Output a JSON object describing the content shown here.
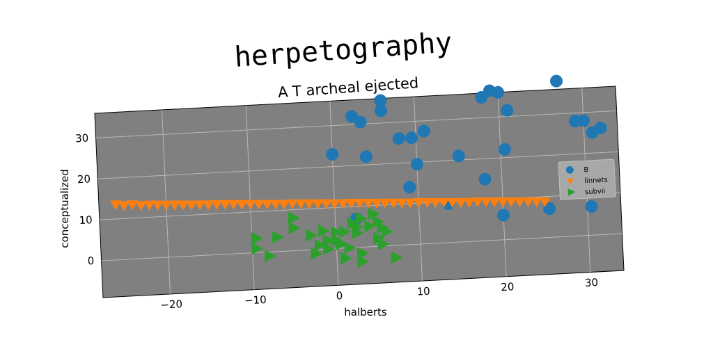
{
  "chart_data": {
    "type": "scatter",
    "title": "herpetography",
    "subtitle": "A T archeal ejected",
    "xlabel": "halberts",
    "ylabel": "conceptualized",
    "xlim": [
      -28,
      34
    ],
    "ylim": [
      -9,
      36
    ],
    "xticks": [
      -20,
      -10,
      0,
      10,
      20,
      30
    ],
    "yticks": [
      0,
      10,
      20,
      30
    ],
    "xtick_labels": [
      "−20",
      "−10",
      "0",
      "10",
      "20",
      "30"
    ],
    "ytick_labels": [
      "0",
      "10",
      "20",
      "30"
    ],
    "grid": true,
    "legend_position": "center-right",
    "background_color": "#808080",
    "series": [
      {
        "name": "B",
        "marker": "circle",
        "color": "#1f77b4",
        "points": [
          [
            2.5,
            32
          ],
          [
            3.5,
            30.5
          ],
          [
            6,
            35.5
          ],
          [
            6,
            33
          ],
          [
            19,
            36.5
          ],
          [
            18,
            35
          ],
          [
            20,
            36
          ],
          [
            21,
            31.5
          ],
          [
            27,
            38
          ],
          [
            29,
            28
          ],
          [
            30,
            28
          ],
          [
            31,
            25
          ],
          [
            32,
            26
          ],
          [
            0,
            23
          ],
          [
            4,
            22
          ],
          [
            8,
            26
          ],
          [
            9.5,
            26
          ],
          [
            11,
            27.5
          ],
          [
            15,
            21
          ],
          [
            20.5,
            22
          ],
          [
            10,
            19.5
          ],
          [
            9,
            14
          ],
          [
            18,
            15
          ],
          [
            13.5,
            9.5
          ],
          [
            25.5,
            7
          ],
          [
            30.5,
            7
          ],
          [
            20,
            6
          ],
          [
            2.5,
            7
          ]
        ]
      },
      {
        "name": "linnets",
        "marker": "triangle-down",
        "color": "#ff7f0e",
        "points": [
          [
            -26,
            13.5
          ],
          [
            -25,
            13.2
          ],
          [
            -24,
            13.3
          ],
          [
            -23,
            13.0
          ],
          [
            -22,
            13.0
          ],
          [
            -21,
            12.9
          ],
          [
            -20,
            12.8
          ],
          [
            -19,
            12.7
          ],
          [
            -18,
            12.6
          ],
          [
            -17,
            12.5
          ],
          [
            -16,
            12.4
          ],
          [
            -15,
            12.3
          ],
          [
            -14,
            12.3
          ],
          [
            -13,
            12.2
          ],
          [
            -12,
            12.1
          ],
          [
            -11,
            12.0
          ],
          [
            -10,
            11.9
          ],
          [
            -9,
            11.8
          ],
          [
            -8,
            11.7
          ],
          [
            -7,
            11.6
          ],
          [
            -6,
            11.5
          ],
          [
            -5,
            11.5
          ],
          [
            -4,
            11.4
          ],
          [
            -3,
            11.3
          ],
          [
            -2,
            11.2
          ],
          [
            -1,
            11.1
          ],
          [
            0,
            11.0
          ],
          [
            1,
            10.9
          ],
          [
            2,
            10.9
          ],
          [
            3,
            10.8
          ],
          [
            4,
            10.7
          ],
          [
            5,
            10.6
          ],
          [
            6,
            10.5
          ],
          [
            7,
            10.4
          ],
          [
            8,
            10.3
          ],
          [
            9,
            10.2
          ],
          [
            10,
            10.2
          ],
          [
            11,
            10.1
          ],
          [
            12,
            10.0
          ],
          [
            13,
            9.9
          ],
          [
            14,
            9.8
          ],
          [
            15,
            9.7
          ],
          [
            16,
            9.6
          ],
          [
            17,
            9.6
          ],
          [
            18,
            9.5
          ],
          [
            19,
            9.4
          ],
          [
            20,
            9.3
          ],
          [
            21,
            9.2
          ],
          [
            22,
            9.1
          ],
          [
            23,
            9.0
          ],
          [
            24,
            8.9
          ],
          [
            25,
            8.8
          ]
        ]
      },
      {
        "name": "subvii",
        "marker": "triangle-right",
        "color": "#2ca02c",
        "points": [
          [
            -9.5,
            3.5
          ],
          [
            -9.5,
            1
          ],
          [
            -7,
            3.5
          ],
          [
            -8,
            -1
          ],
          [
            -5,
            8
          ],
          [
            -5,
            5.5
          ],
          [
            -3,
            3.5
          ],
          [
            -2.5,
            -1
          ],
          [
            -2,
            1
          ],
          [
            -1.5,
            4.5
          ],
          [
            -1,
            2
          ],
          [
            -1,
            0
          ],
          [
            0,
            2
          ],
          [
            0.5,
            1
          ],
          [
            0,
            4
          ],
          [
            1,
            4
          ],
          [
            1.5,
            0
          ],
          [
            2,
            6
          ],
          [
            2.5,
            5
          ],
          [
            2.5,
            3.5
          ],
          [
            3,
            7
          ],
          [
            3,
            -1.5
          ],
          [
            4,
            5
          ],
          [
            4.5,
            8
          ],
          [
            5,
            6
          ],
          [
            5.5,
            4.5
          ],
          [
            5,
            2
          ],
          [
            5.5,
            0.5
          ],
          [
            6,
            3.5
          ],
          [
            7,
            -3
          ],
          [
            1,
            -2.5
          ],
          [
            3,
            -3.5
          ]
        ]
      }
    ]
  }
}
